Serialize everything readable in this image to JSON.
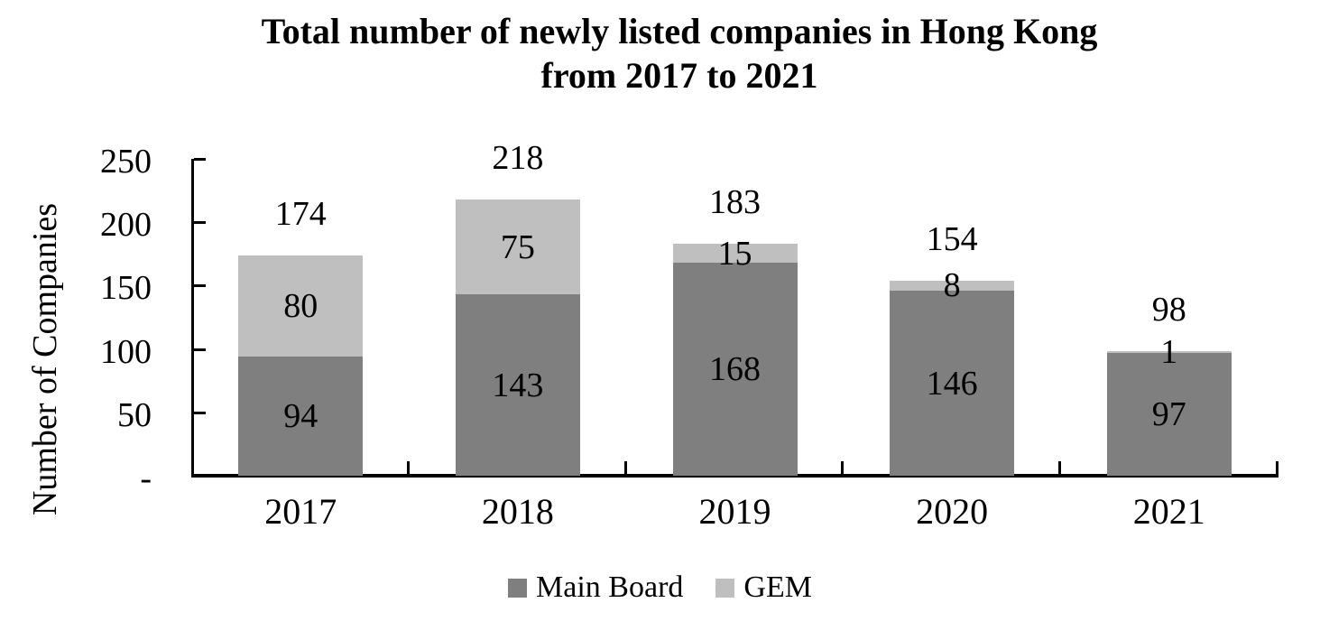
{
  "chart_data": {
    "type": "bar",
    "stacked": true,
    "title_lines": [
      "Total number of newly listed companies in Hong Kong",
      "from 2017 to 2021"
    ],
    "ylabel": "Number of Companies",
    "xlabel": "",
    "categories": [
      "2017",
      "2018",
      "2019",
      "2020",
      "2021"
    ],
    "series": [
      {
        "name": "Main Board",
        "color": "#7F7F7F",
        "values": [
          94,
          143,
          168,
          146,
          97
        ]
      },
      {
        "name": "GEM",
        "color": "#BFBFBF",
        "values": [
          80,
          75,
          15,
          8,
          1
        ]
      }
    ],
    "totals": [
      174,
      218,
      183,
      154,
      98
    ],
    "y_tick_labels": [
      "250",
      "200",
      "150",
      "100",
      "50",
      "-"
    ],
    "y_tick_values": [
      250,
      200,
      150,
      100,
      50,
      0
    ],
    "ylim": [
      0,
      250
    ],
    "grid": false,
    "legend_position": "bottom",
    "colors": {
      "axis": "#000000",
      "text": "#000000",
      "background": "#FFFFFF"
    }
  }
}
